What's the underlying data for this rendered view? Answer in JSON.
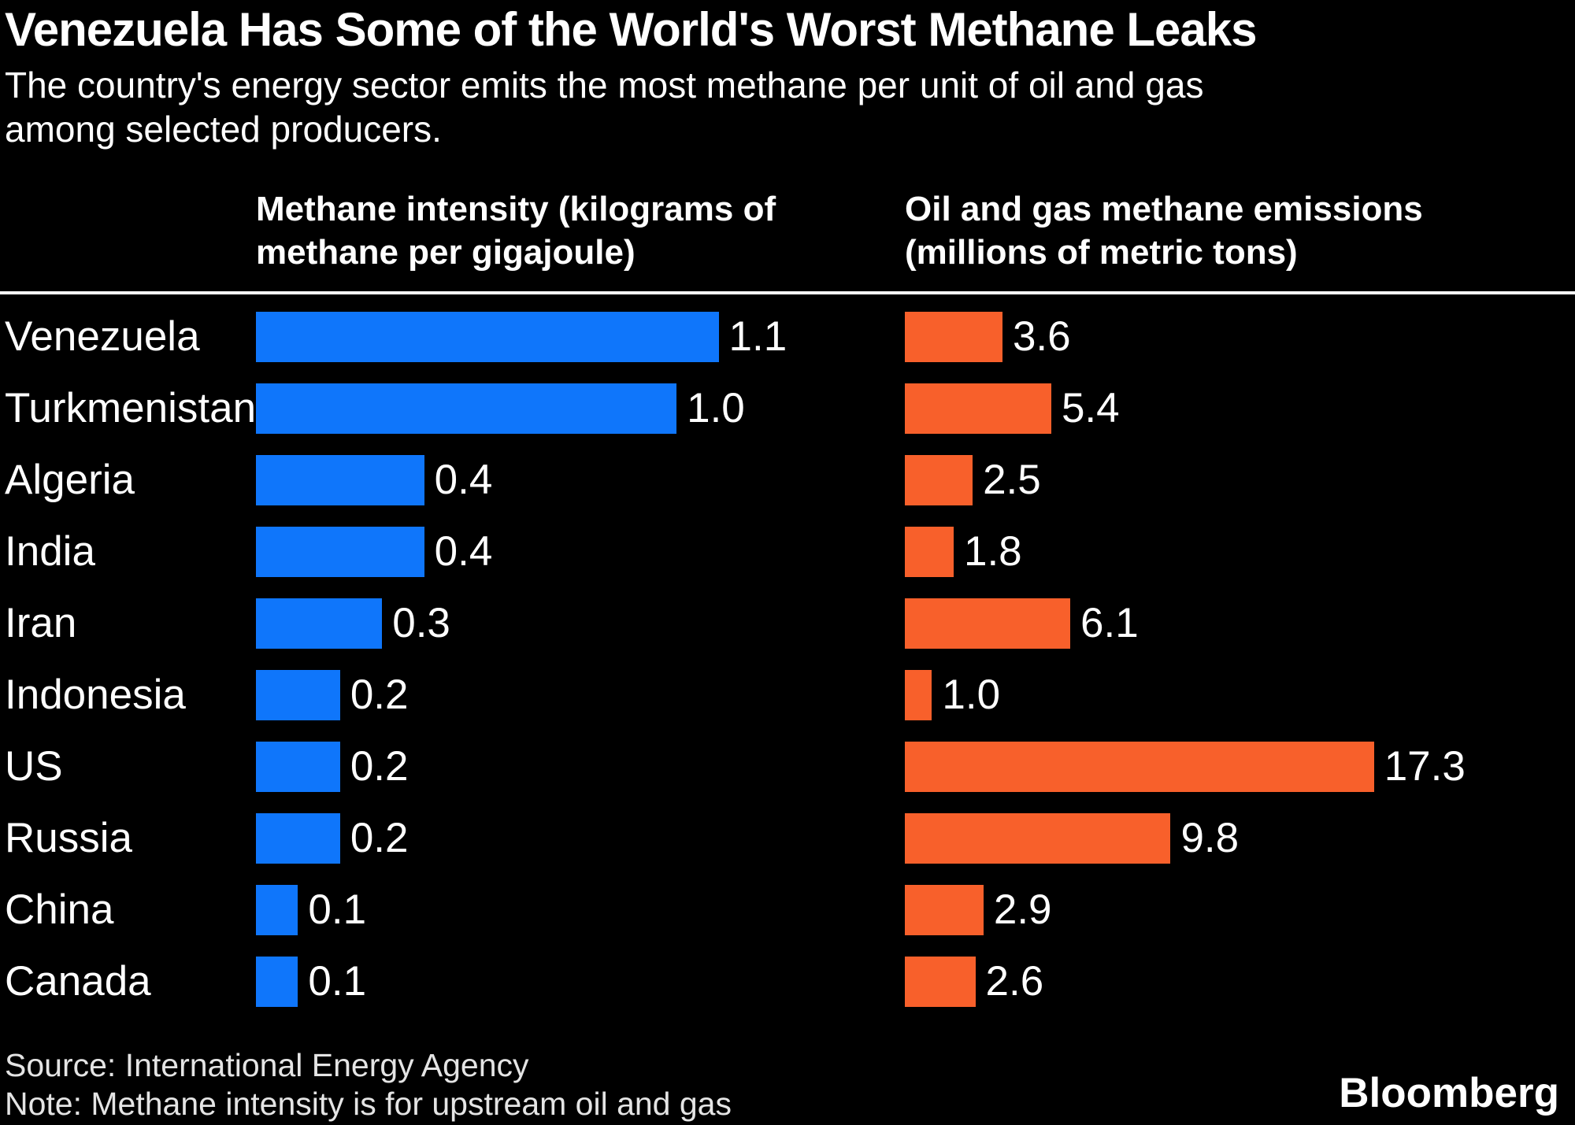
{
  "header": {
    "title": "Venezuela Has Some of the World's Worst Methane Leaks",
    "subtitle": "The country's energy sector emits the most methane per unit of oil and gas among selected producers."
  },
  "columns": {
    "intensity": "Methane intensity (kilograms of methane per gigajoule)",
    "emissions": "Oil and gas methane emissions (millions of metric tons)"
  },
  "chart_data": {
    "type": "bar",
    "orientation": "horizontal",
    "grid": false,
    "legend": "none",
    "title": "Venezuela Has Some of the World's Worst Methane Leaks",
    "categories": [
      "Venezuela",
      "Turkmenistan",
      "Algeria",
      "India",
      "Iran",
      "Indonesia",
      "US",
      "Russia",
      "China",
      "Canada"
    ],
    "series": [
      {
        "name": "Methane intensity (kilograms of methane per gigajoule)",
        "color": "#0f76fb",
        "values": [
          1.1,
          1.0,
          0.4,
          0.4,
          0.3,
          0.2,
          0.2,
          0.2,
          0.1,
          0.1
        ],
        "labels": [
          "1.1",
          "1.0",
          "0.4",
          "0.4",
          "0.3",
          "0.2",
          "0.2",
          "0.2",
          "0.1",
          "0.1"
        ],
        "axis_max": 1.1,
        "bar_scale_pct": 71.3
      },
      {
        "name": "Oil and gas methane emissions (millions of metric tons)",
        "color": "#f8602b",
        "values": [
          3.6,
          5.4,
          2.5,
          1.8,
          6.1,
          1.0,
          17.3,
          9.8,
          2.9,
          2.6
        ],
        "labels": [
          "3.6",
          "5.4",
          "2.5",
          "1.8",
          "6.1",
          "1.0",
          "17.3",
          "9.8",
          "2.9",
          "2.6"
        ],
        "axis_max": 17.3,
        "bar_scale_pct": 70.0
      }
    ]
  },
  "footer": {
    "source": "Source: International Energy Agency",
    "note": "Note: Methane intensity is for upstream oil and gas",
    "brand": "Bloomberg"
  },
  "colors": {
    "background": "#000000",
    "text": "#ffffff",
    "footer_text": "#e4e4e4",
    "divider": "#ffffff",
    "intensity_bar": "#0f76fb",
    "emissions_bar": "#f8602b"
  }
}
